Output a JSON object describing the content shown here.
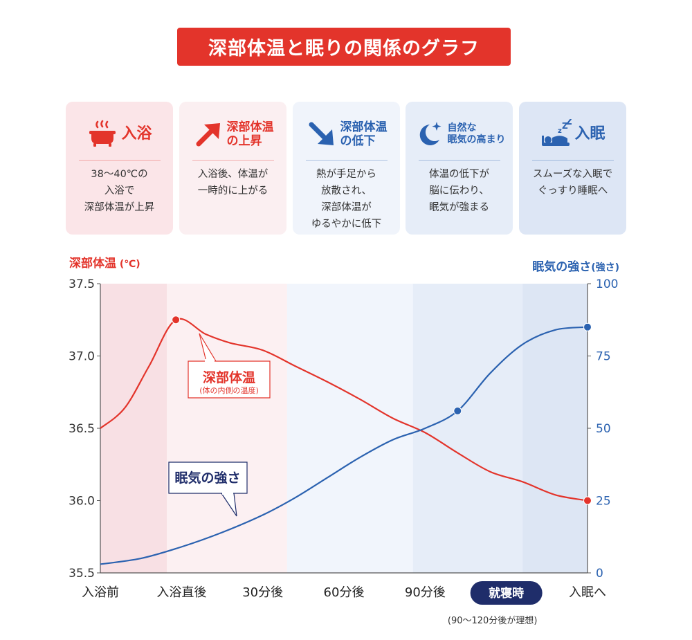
{
  "title": "深部体温と眠りの関係のグラフ",
  "colors": {
    "red": "#e3342b",
    "blue": "#2b62b0",
    "navy": "#1f2d6a"
  },
  "steps": [
    {
      "title": "入浴",
      "size": "big",
      "icon": "bath-icon",
      "color": "#e3342b",
      "bg": "#fbe5e8",
      "body": "38〜40℃の\n入浴で\n深部体温が上昇"
    },
    {
      "title": "深部体温\nの上昇",
      "size": "mid",
      "icon": "arrow-up-right-icon",
      "color": "#e3342b",
      "bg": "#fbeff1",
      "body": "入浴後、体温が\n一時的に上がる"
    },
    {
      "title": "深部体温\nの低下",
      "size": "mid",
      "icon": "arrow-down-right-icon",
      "color": "#2b62b0",
      "bg": "#f0f4fb",
      "body": "熱が手足から\n放散され、\n深部体温が\nゆるやかに低下"
    },
    {
      "title": "自然な\n眠気の高まり",
      "size": "small",
      "icon": "moon-star-icon",
      "color": "#2b62b0",
      "bg": "#e6edf8",
      "body": "体温の低下が\n脳に伝わり、\n眠気が強まる"
    },
    {
      "title": "入眠",
      "size": "big",
      "icon": "sleeping-icon",
      "color": "#2b62b0",
      "bg": "#dde6f5",
      "body": "スムーズな入眠で\nぐっすり睡眠へ"
    }
  ],
  "chart_data": {
    "type": "line",
    "categories": [
      "入浴前",
      "入浴直後",
      "30分後",
      "60分後",
      "90分後",
      "就寝時",
      "入眠へ"
    ],
    "highlight_category": "就寝時",
    "note": "(90〜120分後が理想)",
    "left_axis": {
      "label": "深部体温",
      "unit": "(℃)",
      "range": [
        35.5,
        37.5
      ],
      "ticks": [
        "35.5",
        "36.0",
        "36.5",
        "37.0",
        "37.5"
      ]
    },
    "right_axis": {
      "label": "眠気の強さ",
      "unit": "(強さ)",
      "range": [
        0,
        100
      ],
      "ticks": [
        "0",
        "25",
        "50",
        "75",
        "100"
      ]
    },
    "series": [
      {
        "name": "深部体温",
        "sub": "(体の内側の温度)",
        "axis": "left",
        "color": "#e3342b",
        "x": [
          0,
          0.3,
          0.6,
          0.93,
          1.3,
          1.6,
          2.0,
          2.4,
          2.8,
          3.2,
          3.6,
          4.0,
          4.4,
          4.8,
          5.2,
          5.6,
          6.0
        ],
        "values": [
          36.5,
          36.64,
          36.93,
          37.25,
          37.15,
          37.09,
          37.04,
          36.93,
          36.82,
          36.7,
          36.57,
          36.47,
          36.33,
          36.2,
          36.13,
          36.04,
          36.0
        ],
        "markers": [
          3,
          16
        ]
      },
      {
        "name": "眠気の強さ",
        "axis": "right",
        "color": "#2b62b0",
        "x": [
          0,
          0.5,
          1.0,
          1.5,
          2.0,
          2.4,
          2.8,
          3.2,
          3.6,
          4.0,
          4.4,
          4.8,
          5.2,
          5.6,
          6.0
        ],
        "values": [
          3,
          5,
          9,
          14,
          20,
          26,
          33,
          40,
          46,
          50,
          56,
          69,
          79,
          84,
          85
        ],
        "markers": [
          10,
          14
        ]
      }
    ],
    "bands": [
      {
        "from": 0,
        "to": 0.82,
        "color": "#f8e0e4"
      },
      {
        "from": 0.82,
        "to": 2.3,
        "color": "#fcf0f2"
      },
      {
        "from": 2.3,
        "to": 3.85,
        "color": "#f1f5fc"
      },
      {
        "from": 3.85,
        "to": 5.2,
        "color": "#e6edf8"
      },
      {
        "from": 5.2,
        "to": 6.0,
        "color": "#dde6f4"
      }
    ]
  }
}
